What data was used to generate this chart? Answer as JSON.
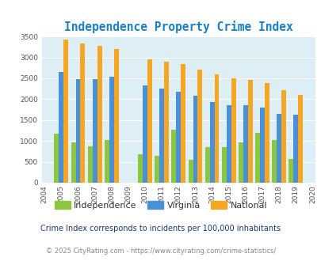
{
  "title": "Independence Property Crime Index",
  "years": [
    2004,
    2005,
    2006,
    2007,
    2008,
    2009,
    2010,
    2011,
    2012,
    2013,
    2014,
    2015,
    2016,
    2017,
    2018,
    2019,
    2020
  ],
  "independence": [
    null,
    1175,
    975,
    875,
    1025,
    null,
    675,
    650,
    1260,
    550,
    860,
    860,
    975,
    1200,
    1025,
    575,
    null
  ],
  "virginia": [
    null,
    2650,
    2490,
    2490,
    2530,
    null,
    2330,
    2255,
    2170,
    2075,
    1940,
    1860,
    1860,
    1790,
    1640,
    1625,
    null
  ],
  "national": [
    null,
    3420,
    3335,
    3270,
    3205,
    null,
    2950,
    2900,
    2850,
    2710,
    2590,
    2500,
    2470,
    2380,
    2210,
    2110,
    null
  ],
  "independence_color": "#8dc63f",
  "virginia_color": "#4a90d9",
  "national_color": "#f5a623",
  "plot_bg_color": "#ddeef5",
  "fig_bg_color": "#ffffff",
  "title_color": "#1a80c8",
  "ylim": [
    0,
    3500
  ],
  "yticks": [
    0,
    500,
    1000,
    1500,
    2000,
    2500,
    3000,
    3500
  ],
  "footer_note": "Crime Index corresponds to incidents per 100,000 inhabitants",
  "copyright": "© 2025 CityRating.com - https://www.cityrating.com/crime-statistics/",
  "legend_labels": [
    "Independence",
    "Virginia",
    "National"
  ],
  "bar_width": 0.28
}
